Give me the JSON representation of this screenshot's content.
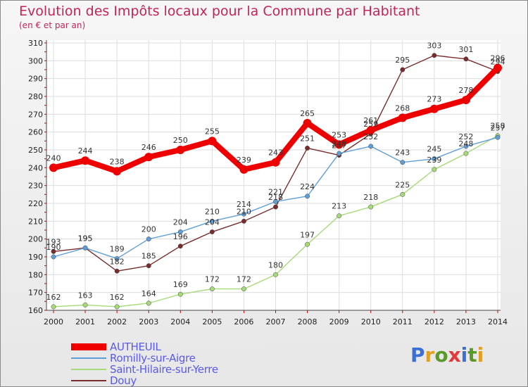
{
  "title": "Evolution des Impôts locaux pour la Commune par Habitant",
  "subtitle": "(en € et par an)",
  "logo": [
    "P",
    "r",
    "o",
    "x",
    "i",
    "t",
    "i"
  ],
  "logo_colors": [
    "#3a6fd6",
    "#e0a020",
    "#5a9a2a",
    "#e03a3a",
    "#3a6fd6",
    "#5a9a2a",
    "#e0a020"
  ],
  "chart_data": {
    "type": "line",
    "title": "Evolution des Impôts locaux pour la Commune par Habitant",
    "ylabel": "(en € et par an)",
    "x": [
      "2000",
      "2001",
      "2002",
      "2003",
      "2004",
      "2005",
      "2006",
      "2007",
      "2008",
      "2009",
      "2010",
      "2011",
      "2012",
      "2013",
      "2014"
    ],
    "ylim": [
      160,
      310
    ],
    "yticks": [
      160,
      170,
      180,
      190,
      200,
      210,
      220,
      230,
      240,
      250,
      260,
      270,
      280,
      290,
      300,
      310
    ],
    "series": [
      {
        "name": "AUTHEUIL",
        "color": "#ee0000",
        "values": [
          240,
          244,
          238,
          246,
          250,
          255,
          239,
          243,
          265,
          253,
          261,
          268,
          273,
          278,
          296
        ],
        "labels": [
          "240",
          "244",
          "238",
          "246",
          "250",
          "255",
          "239",
          "243",
          "265",
          "253",
          "261",
          "268",
          "273",
          "278",
          "296"
        ]
      },
      {
        "name": "Romilly-sur-Aigre",
        "color": "#5f9fd6",
        "values": [
          190,
          195,
          189,
          200,
          204,
          210,
          214,
          221,
          224,
          248,
          252,
          243,
          245,
          252,
          257
        ],
        "labels": [
          "190",
          "195",
          "189",
          "200",
          "204",
          "210",
          "214",
          "221",
          "224",
          "248",
          "252",
          "243",
          "245",
          "252",
          "257"
        ]
      },
      {
        "name": "Saint-Hilaire-sur-Yerre",
        "color": "#a6da78",
        "values": [
          162,
          163,
          162,
          164,
          169,
          172,
          172,
          180,
          197,
          213,
          218,
          225,
          239,
          248,
          258
        ],
        "labels": [
          "162",
          "163",
          "162",
          "164",
          "169",
          "172",
          "172",
          "180",
          "197",
          "213",
          "218",
          "225",
          "239",
          "248",
          "258"
        ]
      },
      {
        "name": "Douy",
        "color": "#7a2c2c",
        "values": [
          193,
          195,
          182,
          185,
          196,
          204,
          210,
          218,
          251,
          247,
          259,
          295,
          303,
          301,
          294
        ],
        "labels": [
          "193",
          "195",
          "182",
          "185",
          "196",
          "204",
          "210",
          "218",
          "251",
          "247",
          "259",
          "295",
          "303",
          "301",
          "294"
        ]
      }
    ]
  }
}
